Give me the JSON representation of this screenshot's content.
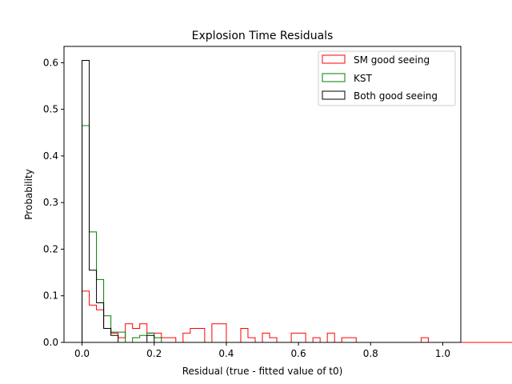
{
  "chart_data": {
    "type": "histogram",
    "title": "Explosion Time Residuals",
    "xlabel": "Residual (true - fitted value of t0)",
    "ylabel": "Probability",
    "xlim": [
      -0.05,
      1.05
    ],
    "ylim": [
      0,
      0.635
    ],
    "xticks": [
      0.0,
      0.2,
      0.4,
      0.6,
      0.8,
      1.0
    ],
    "yticks": [
      0.0,
      0.1,
      0.2,
      0.3,
      0.4,
      0.5,
      0.6
    ],
    "grid": false,
    "legend_position": "top-right",
    "bin_width": 0.02,
    "bin_start": 0.0,
    "series": [
      {
        "name": "SM good seeing",
        "color": "#ff0000",
        "values": [
          0.11,
          0.08,
          0.07,
          0.03,
          0.02,
          0.01,
          0.04,
          0.03,
          0.04,
          0.02,
          0.02,
          0.01,
          0.01,
          0.0,
          0.02,
          0.03,
          0.03,
          0.0,
          0.04,
          0.04,
          0.0,
          0.0,
          0.03,
          0.01,
          0.0,
          0.02,
          0.01,
          0.0,
          0.0,
          0.02,
          0.02,
          0.0,
          0.01,
          0.0,
          0.02,
          0.0,
          0.01,
          0.01,
          0.0,
          0.0,
          0.0,
          0.0,
          0.0,
          0.0,
          0.0,
          0.0,
          0.0,
          0.01,
          0.0,
          0.0,
          0.0,
          0.0,
          0.0,
          0.0,
          0.0,
          0.0,
          0.0,
          0.0,
          0.0,
          0.0,
          0.0,
          0.0,
          0.0,
          0.0,
          0.0,
          0.0,
          0.0,
          0.0,
          0.0,
          0.0,
          0.0,
          0.0,
          0.0,
          0.0,
          0.0,
          0.0,
          0.0,
          0.0,
          0.0,
          0.0,
          0.0,
          0.0,
          0.0,
          0.0,
          0.0,
          0.0,
          0.0,
          0.0,
          0.0,
          0.0,
          0.0,
          0.0,
          0.0,
          0.0,
          0.0,
          0.0,
          0.0,
          0.0,
          0.0,
          0.0
        ]
      },
      {
        "name": "KST",
        "color": "#008000",
        "values": [
          0.465,
          0.237,
          0.135,
          0.057,
          0.022,
          0.022,
          0.0,
          0.01,
          0.015,
          0.02,
          0.01,
          0.0,
          0.0,
          0.0,
          0.0,
          0.0,
          0.0,
          0.0,
          0.0,
          0.0,
          0.0,
          0.0,
          0.0,
          0.0,
          0.0,
          0.0,
          0.0,
          0.0,
          0.0,
          0.0,
          0.0,
          0.0,
          0.0,
          0.0,
          0.0,
          0.0,
          0.0,
          0.0,
          0.0,
          0.0,
          0.0,
          0.0,
          0.0,
          0.0,
          0.0,
          0.0,
          0.0,
          0.0,
          0.0,
          0.0
        ]
      },
      {
        "name": "Both good seeing",
        "color": "#000000",
        "values": [
          0.605,
          0.155,
          0.085,
          0.03,
          0.015,
          0.0,
          0.0,
          0.0,
          0.0,
          0.015,
          0.0,
          0.0,
          0.0,
          0.0,
          0.0,
          0.0,
          0.0,
          0.0,
          0.0,
          0.0,
          0.0,
          0.0,
          0.0,
          0.0,
          0.0,
          0.0,
          0.0,
          0.0,
          0.0,
          0.0,
          0.0,
          0.0,
          0.0,
          0.0,
          0.0,
          0.0,
          0.0,
          0.0,
          0.0,
          0.0,
          0.0,
          0.0,
          0.0,
          0.0,
          0.0,
          0.0,
          0.0,
          0.0,
          0.0,
          0.0
        ]
      }
    ]
  }
}
